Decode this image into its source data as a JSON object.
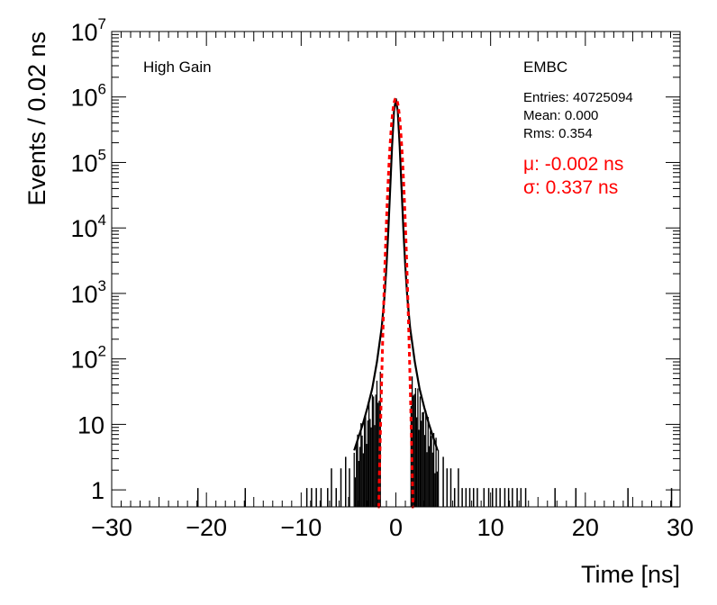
{
  "chart_data": {
    "type": "histogram",
    "xlabel": "Time [ns]",
    "ylabel": "Events / 0.02 ns",
    "xlim": [
      -30,
      30
    ],
    "ylim": [
      0.55,
      10000000
    ],
    "yscale": "log",
    "x_ticks": [
      "−30",
      "−20",
      "−10",
      "0",
      "10",
      "20",
      "30"
    ],
    "x_tick_values": [
      -30,
      -20,
      -10,
      0,
      10,
      20,
      30
    ],
    "y_ticks": [
      {
        "value": 1,
        "base": "1",
        "exp": ""
      },
      {
        "value": 10,
        "base": "10",
        "exp": ""
      },
      {
        "value": 100,
        "base": "10",
        "exp": "2"
      },
      {
        "value": 1000,
        "base": "10",
        "exp": "3"
      },
      {
        "value": 10000,
        "base": "10",
        "exp": "4"
      },
      {
        "value": 100000,
        "base": "10",
        "exp": "5"
      },
      {
        "value": 1000000,
        "base": "10",
        "exp": "6"
      },
      {
        "value": 10000000,
        "base": "10",
        "exp": "7"
      }
    ],
    "corner_label": "High Gain",
    "region_label": "EMBC",
    "stats": {
      "entries": "Entries: 40725094",
      "mean": "Mean: 0.000",
      "rms": "Rms: 0.354"
    },
    "fit": {
      "mu_label": "μ: -0.002 ns",
      "sigma_label": "σ: 0.337 ns",
      "mu": -0.002,
      "sigma": 0.337,
      "peak": 950000,
      "range": [
        -1.9,
        1.9
      ],
      "color": "#ff0000"
    },
    "histogram": {
      "color": "#000000",
      "core_points": [
        [
          -4.4,
          4
        ],
        [
          -4.0,
          6
        ],
        [
          -3.5,
          10
        ],
        [
          -3.0,
          18
        ],
        [
          -2.5,
          35
        ],
        [
          -2.0,
          90
        ],
        [
          -1.5,
          300
        ],
        [
          -1.2,
          900
        ],
        [
          -1.0,
          2500
        ],
        [
          -0.8,
          9000
        ],
        [
          -0.6,
          40000
        ],
        [
          -0.4,
          180000
        ],
        [
          -0.2,
          600000
        ],
        [
          0.0,
          950000
        ],
        [
          0.2,
          600000
        ],
        [
          0.4,
          180000
        ],
        [
          0.6,
          40000
        ],
        [
          0.8,
          9000
        ],
        [
          1.0,
          2500
        ],
        [
          1.2,
          900
        ],
        [
          1.5,
          300
        ],
        [
          2.0,
          90
        ],
        [
          2.5,
          35
        ],
        [
          3.0,
          18
        ],
        [
          3.5,
          10
        ],
        [
          4.0,
          6
        ],
        [
          4.4,
          4
        ]
      ],
      "isolated_spikes": [
        [
          -20.9,
          1
        ],
        [
          -15.9,
          1
        ],
        [
          -9.4,
          1
        ],
        [
          -8.9,
          1
        ],
        [
          -8.4,
          1
        ],
        [
          -7.9,
          1
        ],
        [
          -7.2,
          1
        ],
        [
          -6.8,
          2
        ],
        [
          -6.3,
          1
        ],
        [
          -5.8,
          2
        ],
        [
          -5.3,
          3
        ],
        [
          -4.9,
          2
        ],
        [
          5.0,
          3
        ],
        [
          5.4,
          2
        ],
        [
          5.8,
          2
        ],
        [
          6.2,
          1
        ],
        [
          6.6,
          2
        ],
        [
          7.0,
          1
        ],
        [
          7.4,
          1
        ],
        [
          7.8,
          1
        ],
        [
          8.2,
          1
        ],
        [
          8.6,
          1
        ],
        [
          9.3,
          1
        ],
        [
          9.8,
          1
        ],
        [
          10.2,
          1
        ],
        [
          10.6,
          1
        ],
        [
          11.0,
          1
        ],
        [
          11.5,
          1
        ],
        [
          11.9,
          1
        ],
        [
          12.3,
          1
        ],
        [
          12.8,
          1
        ],
        [
          13.2,
          1
        ],
        [
          13.7,
          1
        ],
        [
          16.8,
          1
        ],
        [
          19.0,
          1
        ],
        [
          24.5,
          1
        ],
        [
          29.1,
          1
        ]
      ]
    }
  }
}
